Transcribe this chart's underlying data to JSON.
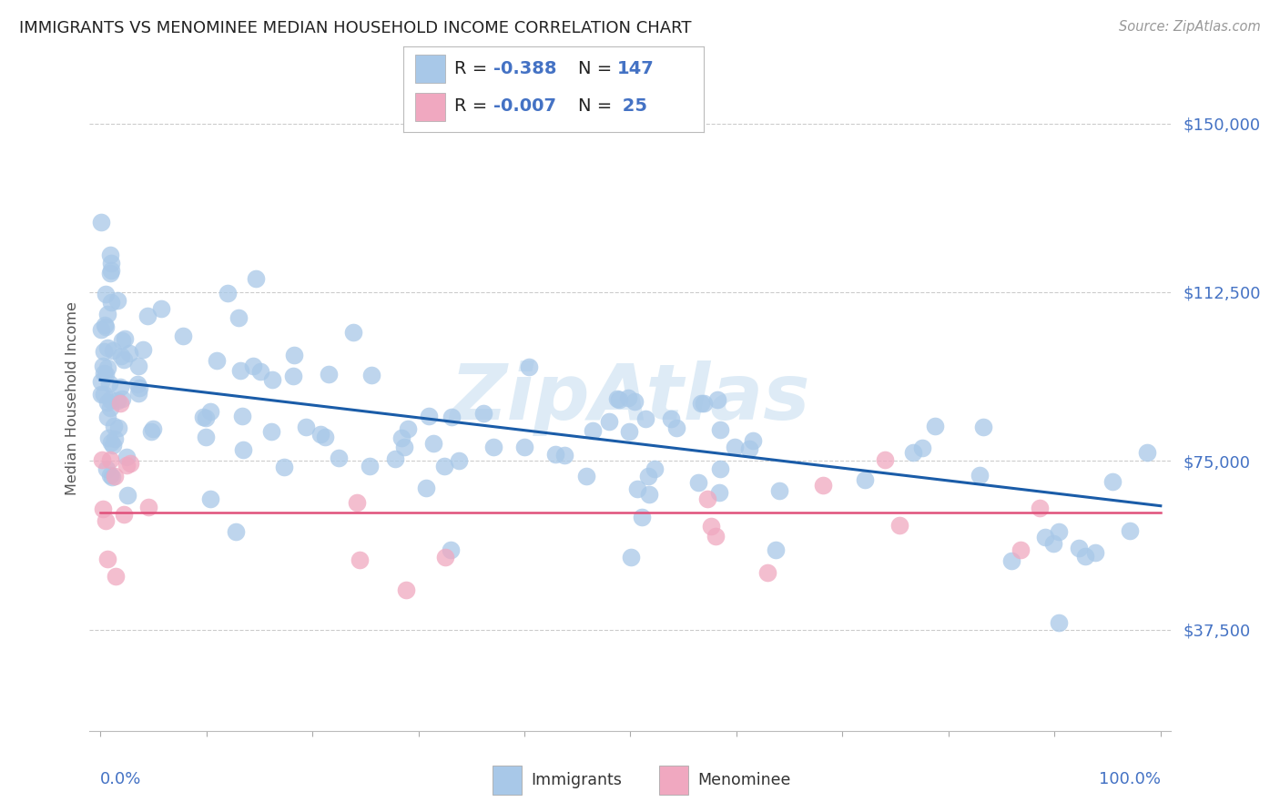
{
  "title": "IMMIGRANTS VS MENOMINEE MEDIAN HOUSEHOLD INCOME CORRELATION CHART",
  "source": "Source: ZipAtlas.com",
  "ylabel": "Median Household Income",
  "yticks": [
    37500,
    75000,
    112500,
    150000
  ],
  "ytick_labels": [
    "$37,500",
    "$75,000",
    "$112,500",
    "$150,000"
  ],
  "ylim_low": 15000,
  "ylim_high": 163000,
  "xlim_low": -1.0,
  "xlim_high": 101.0,
  "immigrants_R": -0.388,
  "immigrants_N": 147,
  "menominee_R": -0.007,
  "menominee_N": 25,
  "imm_color": "#a8c8e8",
  "imm_line_color": "#1a5ca8",
  "men_color": "#f0a8c0",
  "men_line_color": "#e0507a",
  "bg_color": "#ffffff",
  "grid_color": "#cccccc",
  "title_color": "#222222",
  "tick_color": "#4472c4",
  "ylabel_color": "#555555",
  "source_color": "#999999",
  "watermark_color": "#c8dff0",
  "legend_text_color": "#333333",
  "legend_val_color": "#4472c4",
  "imm_trend_y0": 93000,
  "imm_trend_y1": 65000,
  "men_trend_y": 63500
}
